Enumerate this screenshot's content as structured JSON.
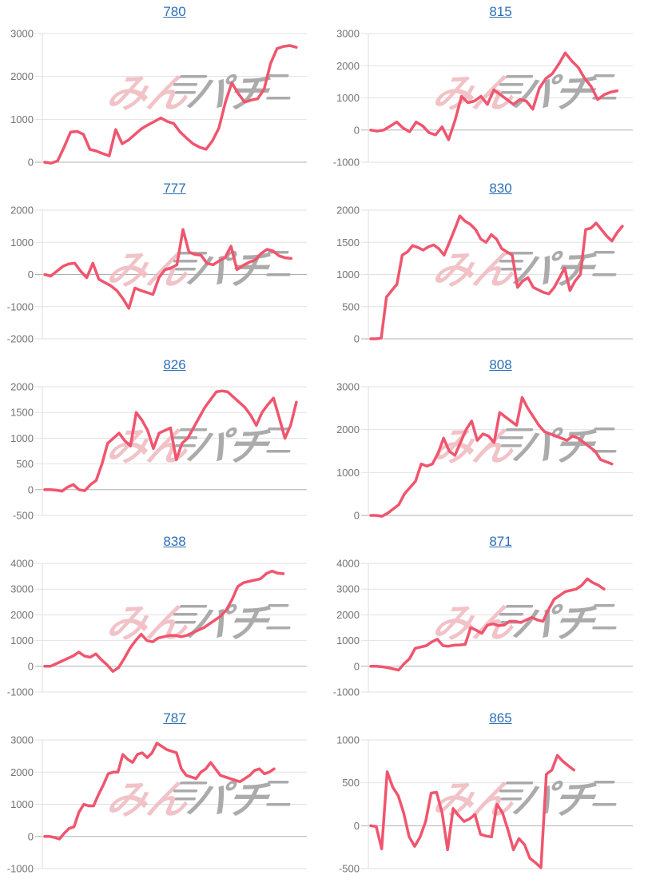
{
  "page": {
    "background": "#ffffff"
  },
  "style": {
    "line_color": "#f0556e",
    "title_color": "#2e6fb7",
    "tick_label_color": "#737373",
    "gridline_color": "#e2e2e2",
    "zero_line_color": "#b0b0b0",
    "axis_line_color": "#dcdcdc",
    "watermark_pink": "#f0bcc1",
    "watermark_gray": "#a3a3a3"
  },
  "watermark": {
    "pink_text": "みん",
    "gray_text": "パチ"
  },
  "chart_data": [
    {
      "type": "line",
      "title": "780",
      "ylim": [
        0,
        3000
      ],
      "y_ticks": [
        0,
        1000,
        2000,
        3000
      ],
      "x_fraction": 0.96,
      "values": [
        0,
        -20,
        30,
        350,
        700,
        720,
        650,
        300,
        260,
        200,
        150,
        760,
        430,
        520,
        650,
        780,
        870,
        950,
        1030,
        950,
        900,
        700,
        560,
        430,
        350,
        300,
        500,
        800,
        1400,
        1850,
        1600,
        1400,
        1450,
        1480,
        1700,
        2300,
        2650,
        2700,
        2720,
        2680
      ]
    },
    {
      "type": "line",
      "title": "815",
      "ylim": [
        -1000,
        3000
      ],
      "y_ticks": [
        -1000,
        0,
        1000,
        2000,
        3000
      ],
      "x_fraction": 0.94,
      "values": [
        0,
        -30,
        0,
        120,
        250,
        60,
        -50,
        250,
        130,
        -80,
        -150,
        100,
        -300,
        300,
        1050,
        850,
        900,
        1050,
        800,
        1250,
        1100,
        950,
        800,
        950,
        900,
        650,
        1300,
        1600,
        1750,
        2050,
        2400,
        2150,
        1950,
        1600,
        1350,
        950,
        1100,
        1180,
        1220
      ]
    },
    {
      "type": "line",
      "title": "777",
      "ylim": [
        -2000,
        2000
      ],
      "y_ticks": [
        -2000,
        -1000,
        0,
        1000,
        2000
      ],
      "x_fraction": 0.94,
      "values": [
        0,
        -50,
        100,
        250,
        330,
        350,
        100,
        -100,
        350,
        -150,
        -250,
        -350,
        -500,
        -750,
        -1050,
        -420,
        -500,
        -560,
        -620,
        -100,
        150,
        200,
        300,
        1400,
        700,
        620,
        600,
        350,
        300,
        420,
        520,
        880,
        150,
        280,
        380,
        450,
        650,
        780,
        730,
        580,
        520,
        500
      ]
    },
    {
      "type": "line",
      "title": "830",
      "ylim": [
        0,
        2000
      ],
      "y_ticks": [
        0,
        500,
        1000,
        1500,
        2000
      ],
      "x_fraction": 0.96,
      "values": [
        0,
        0,
        10,
        650,
        750,
        850,
        1300,
        1350,
        1450,
        1420,
        1380,
        1430,
        1460,
        1400,
        1300,
        1500,
        1700,
        1910,
        1830,
        1780,
        1700,
        1550,
        1500,
        1620,
        1550,
        1400,
        1350,
        1300,
        800,
        900,
        950,
        800,
        760,
        720,
        700,
        800,
        950,
        1100,
        750,
        900,
        1000,
        1700,
        1720,
        1800,
        1700,
        1600,
        1520,
        1650,
        1750
      ]
    },
    {
      "type": "line",
      "title": "826",
      "ylim": [
        -500,
        2000
      ],
      "y_ticks": [
        -500,
        0,
        500,
        1000,
        1500,
        2000
      ],
      "x_fraction": 0.96,
      "values": [
        0,
        0,
        -10,
        -30,
        50,
        100,
        0,
        -20,
        100,
        180,
        500,
        900,
        1000,
        1100,
        950,
        850,
        1500,
        1350,
        1150,
        800,
        1100,
        1150,
        1200,
        580,
        900,
        1000,
        1200,
        1400,
        1600,
        1750,
        1900,
        1920,
        1900,
        1800,
        1700,
        1600,
        1450,
        1250,
        1500,
        1650,
        1780,
        1400,
        1000,
        1250,
        1700
      ]
    },
    {
      "type": "line",
      "title": "808",
      "ylim": [
        0,
        3000
      ],
      "y_ticks": [
        0,
        1000,
        2000,
        3000
      ],
      "x_fraction": 0.92,
      "values": [
        0,
        0,
        -20,
        50,
        150,
        250,
        500,
        650,
        800,
        1200,
        1150,
        1200,
        1450,
        1800,
        1500,
        1400,
        1700,
        2000,
        2200,
        1750,
        1900,
        1850,
        1700,
        2400,
        2300,
        2200,
        2100,
        2750,
        2500,
        2300,
        2100,
        1950,
        1900,
        1850,
        1800,
        1750,
        1850,
        1800,
        1700,
        1600,
        1500,
        1300,
        1250,
        1200
      ]
    },
    {
      "type": "line",
      "title": "838",
      "ylim": [
        -1000,
        4000
      ],
      "y_ticks": [
        -1000,
        0,
        1000,
        2000,
        3000,
        4000
      ],
      "x_fraction": 0.91,
      "values": [
        0,
        0,
        100,
        200,
        300,
        400,
        550,
        400,
        350,
        480,
        250,
        50,
        -200,
        -50,
        300,
        700,
        1000,
        1250,
        1000,
        950,
        1100,
        1150,
        1200,
        1200,
        1150,
        1200,
        1300,
        1400,
        1500,
        1650,
        1800,
        1950,
        2200,
        2600,
        3100,
        3250,
        3300,
        3350,
        3400,
        3600,
        3700,
        3620,
        3600
      ]
    },
    {
      "type": "line",
      "title": "871",
      "ylim": [
        -1000,
        4000
      ],
      "y_ticks": [
        -1000,
        0,
        1000,
        2000,
        3000,
        4000
      ],
      "x_fraction": 0.89,
      "values": [
        0,
        0,
        -20,
        -50,
        -100,
        -150,
        100,
        300,
        700,
        750,
        800,
        950,
        1050,
        800,
        780,
        820,
        830,
        850,
        1500,
        1400,
        1280,
        1600,
        1650,
        1580,
        1600,
        1750,
        1750,
        1700,
        1800,
        1900,
        1800,
        1750,
        2200,
        2600,
        2750,
        2900,
        2950,
        3000,
        3150,
        3400,
        3250,
        3150,
        3000
      ]
    },
    {
      "type": "line",
      "title": "787",
      "ylim": [
        -1000,
        3000
      ],
      "y_ticks": [
        -1000,
        0,
        1000,
        2000,
        3000
      ],
      "x_fraction": 0.875,
      "values": [
        0,
        0,
        -30,
        -80,
        100,
        250,
        300,
        750,
        1000,
        950,
        950,
        1300,
        1600,
        1950,
        2000,
        2000,
        2550,
        2400,
        2300,
        2550,
        2600,
        2450,
        2600,
        2900,
        2800,
        2700,
        2650,
        2600,
        2100,
        1900,
        1850,
        1800,
        2000,
        2100,
        2300,
        2100,
        1900,
        1850,
        1800,
        1750,
        1700,
        1800,
        1900,
        2050,
        2100,
        1950,
        2000,
        2100
      ]
    },
    {
      "type": "line",
      "title": "865",
      "ylim": [
        -500,
        1000
      ],
      "y_ticks": [
        -500,
        0,
        500,
        1000
      ],
      "x_fraction": 0.775,
      "values": [
        0,
        -10,
        -270,
        630,
        450,
        350,
        150,
        -130,
        -240,
        -130,
        50,
        380,
        390,
        150,
        -280,
        200,
        120,
        50,
        80,
        130,
        -100,
        -120,
        -130,
        250,
        150,
        -50,
        -280,
        -150,
        -220,
        -380,
        -430,
        -490,
        600,
        650,
        820,
        750,
        700,
        650
      ]
    }
  ]
}
